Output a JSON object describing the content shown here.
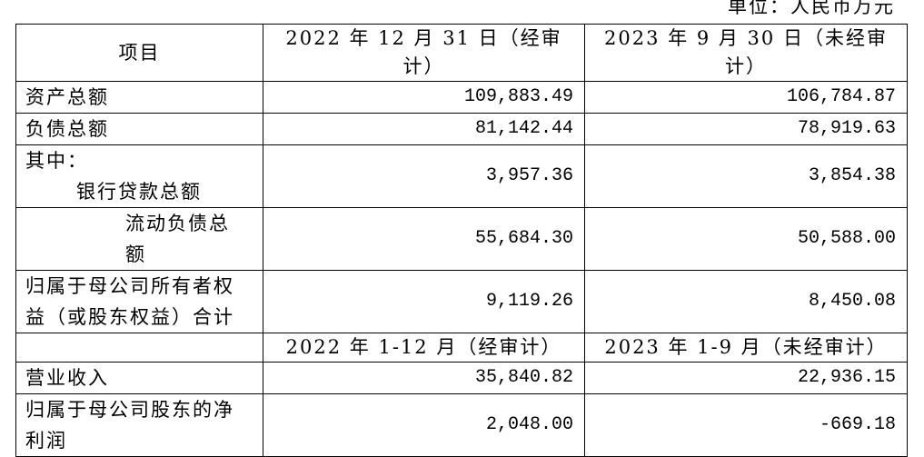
{
  "unit": "单位：人民币万元",
  "header": [
    "项目",
    "2022 年 12 月 31 日（经审计）",
    "2023 年 9 月 30 日（未经审计）"
  ],
  "rows": [
    {
      "label": "资产总额",
      "values": [
        "109,883.49",
        "106,784.87"
      ]
    },
    {
      "label": "负债总额",
      "values": [
        "81,142.44",
        "78,919.63"
      ]
    },
    {
      "prefix": "其中：",
      "label": "银行贷款总额",
      "values": [
        "3,957.36",
        "3,854.38"
      ]
    },
    {
      "label": "流动负债总额",
      "values": [
        "55,684.30",
        "50,588.00"
      ]
    },
    {
      "label": "归属于母公司所有者权益（或股东权益）合计",
      "values": [
        "9,119.26",
        "8,450.08"
      ]
    }
  ],
  "subheader": [
    "2022 年 1-12 月（经审计）",
    "2023 年 1-9 月（未经审计）"
  ],
  "rows2": [
    {
      "label": "营业收入",
      "values": [
        "35,840.82",
        "22,936.15"
      ]
    },
    {
      "label": "归属于母公司股东的净利润",
      "values": [
        "2,048.00",
        "-669.18"
      ]
    }
  ]
}
